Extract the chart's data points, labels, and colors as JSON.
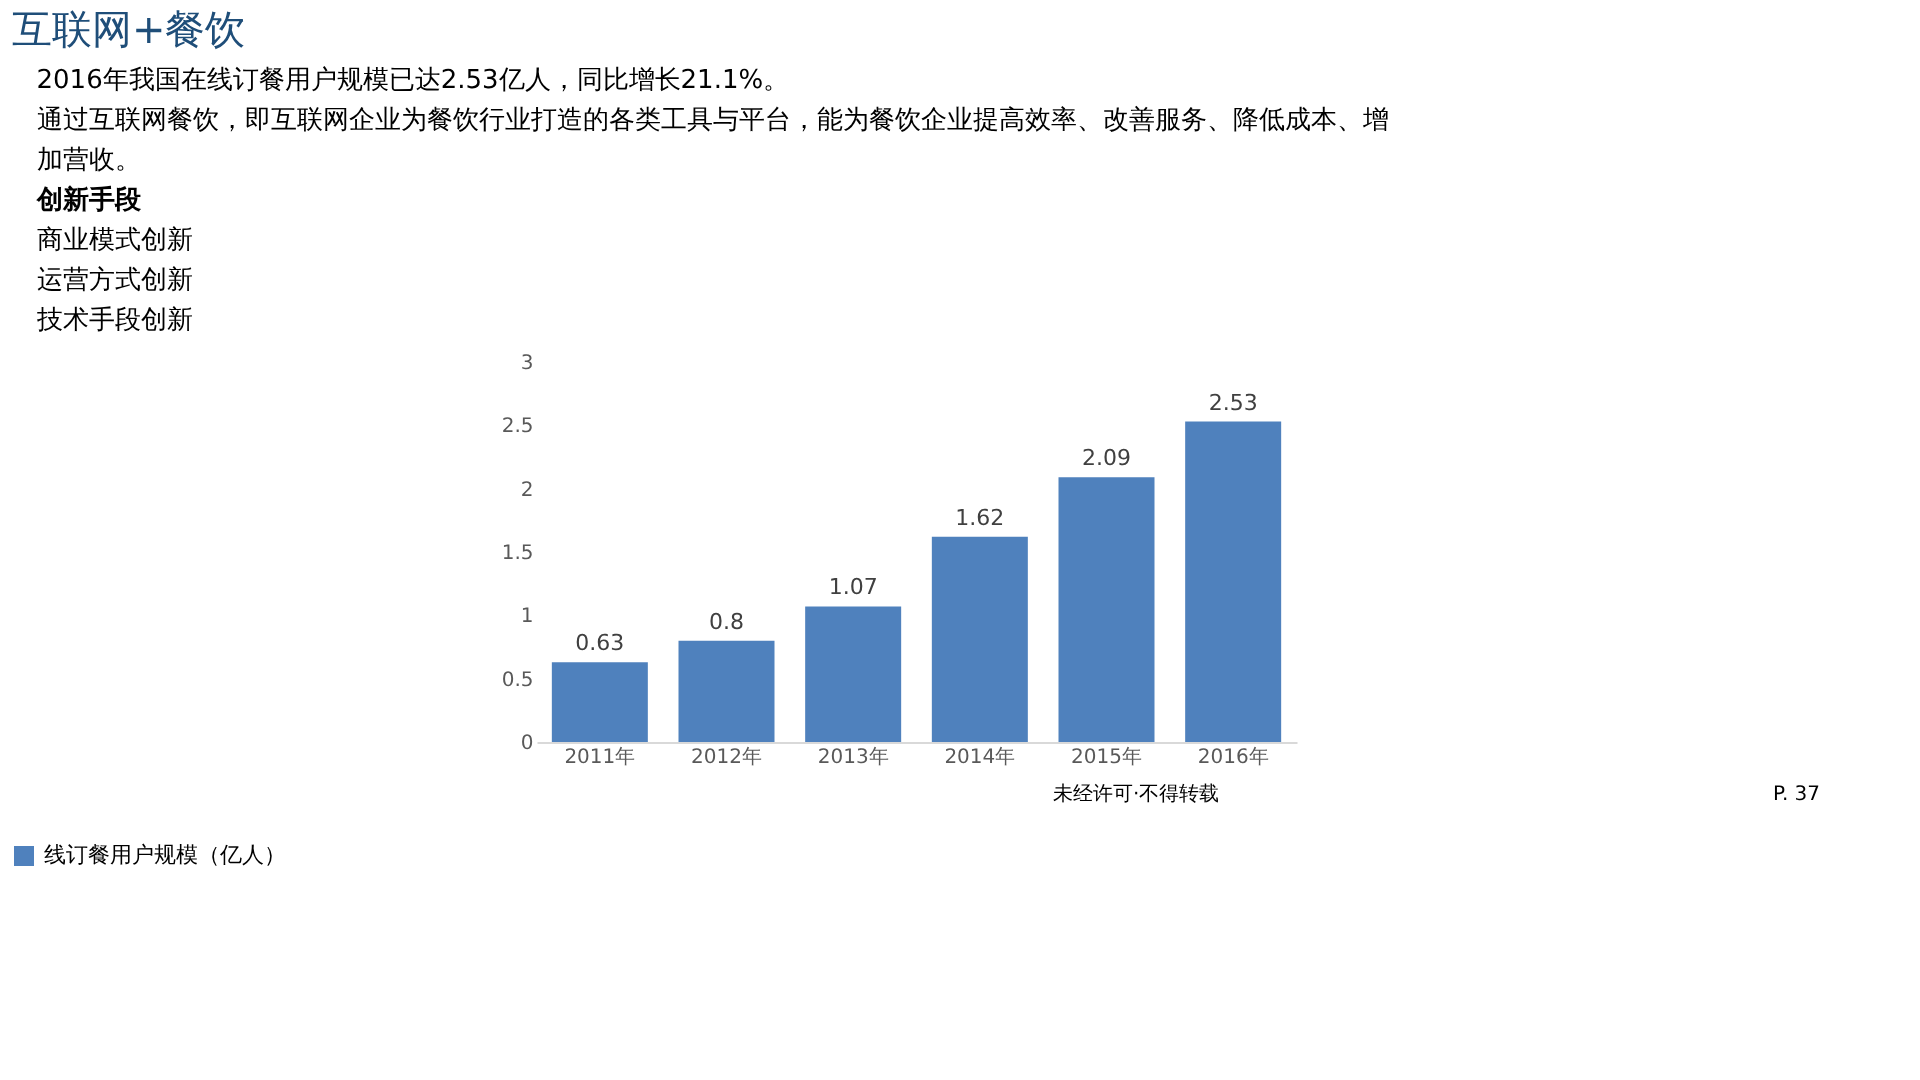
{
  "chart_data": {
    "type": "bar",
    "title": "互联网+餐饮",
    "annotations": [
      "2016年我国在线订餐用户规模已达2.53亿人，同比增长21.1%。",
      "通过互联网餐饮，即互联网企业为餐饮行业打造的各类工具与平台，能为餐饮企业提高效率、改善服务、降低成本、增",
      "加营收。",
      "创新手段",
      "商业模式创新",
      "运营方式创新",
      "技术手段创新",
      "未经许可·不得转载",
      "P. 37"
    ],
    "categories": [
      "2011年",
      "2012年",
      "2013年",
      "2014年",
      "2015年",
      "2016年"
    ],
    "series": [
      {
        "name": "线订餐用户规模（亿人）",
        "color": "#4f81bd",
        "values": [
          0.63,
          0.8,
          1.07,
          1.62,
          2.09,
          2.53
        ]
      }
    ],
    "ylim": [
      0,
      3
    ],
    "yticks": [
      0,
      0.5,
      1,
      1.5,
      2,
      2.5,
      3
    ],
    "grid": false,
    "data_labels": true,
    "legend": "bottom"
  }
}
